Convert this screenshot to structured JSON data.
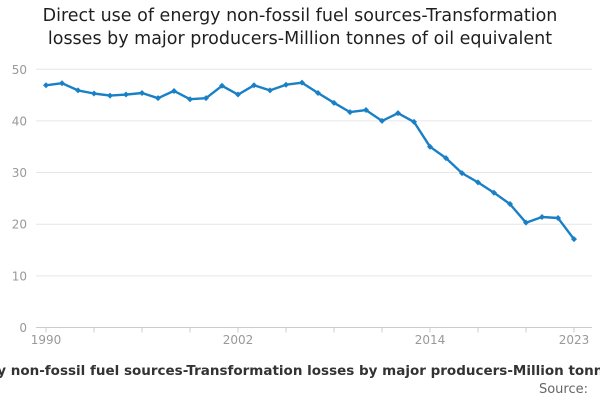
{
  "title": {
    "lines": [
      "Direct use of energy non-fossil fuel sources-Transformation",
      "losses by major producers-Million tonnes of oil equivalent"
    ]
  },
  "footer": {
    "caption": "Direct use of energy non-fossil fuel sources-Transformation losses by major producers-Million tonnes of oil equivalent",
    "source_label": "Source:"
  },
  "colors": {
    "line": "#1a80c6",
    "grid": "#e6e6e6",
    "axis": "#cccccc",
    "tick_label": "#999999",
    "title_text": "#1f1f1f",
    "caption_text": "#333333",
    "source_text": "#666666",
    "background": "#ffffff"
  },
  "chart_data": {
    "type": "line",
    "title": "Direct use of energy non-fossil fuel sources-Transformation losses by major producers-Million tonnes of oil equivalent",
    "xlabel": "",
    "ylabel": "",
    "x": [
      1990,
      1991,
      1992,
      1993,
      1994,
      1995,
      1996,
      1997,
      1998,
      1999,
      2000,
      2001,
      2002,
      2003,
      2004,
      2005,
      2006,
      2007,
      2008,
      2009,
      2010,
      2011,
      2012,
      2013,
      2014,
      2015,
      2016,
      2017,
      2018,
      2019,
      2020,
      2021,
      2022,
      2023
    ],
    "values": [
      46.9,
      47.3,
      45.9,
      45.3,
      44.9,
      45.1,
      45.4,
      44.4,
      45.8,
      44.2,
      44.4,
      46.8,
      45.1,
      46.9,
      45.9,
      47.0,
      47.4,
      45.4,
      43.5,
      41.7,
      42.1,
      40.0,
      41.5,
      39.8,
      35.0,
      32.8,
      29.9,
      28.1,
      26.1,
      23.9,
      20.3,
      21.4,
      21.2,
      17.1
    ],
    "ylim": [
      0,
      50
    ],
    "yticks": [
      0,
      10,
      20,
      30,
      40,
      50
    ],
    "xtick_labels": [
      {
        "year": 1990,
        "label": "1990"
      },
      {
        "year": 2002,
        "label": "2002"
      },
      {
        "year": 2014,
        "label": "2014"
      },
      {
        "year": 2023,
        "label": "2023"
      }
    ],
    "minor_tick_step_years": 3,
    "grid": "horizontal",
    "legend": "none",
    "marker": "diamond",
    "series_name": "Transformation losses by major producers"
  }
}
